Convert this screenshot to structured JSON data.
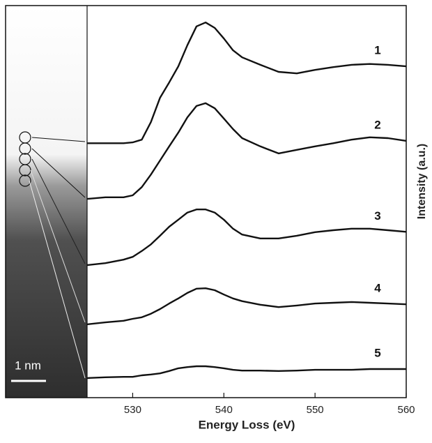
{
  "chart_data": {
    "type": "line",
    "xlabel": "Energy Loss (eV)",
    "ylabel": "Intensity (a.u.)",
    "x": [
      525,
      527,
      529,
      530,
      531,
      532,
      533,
      534,
      535,
      536,
      537,
      538,
      539,
      540,
      541,
      542,
      544,
      546,
      548,
      550,
      552,
      554,
      556,
      558,
      560
    ],
    "xlim": [
      525,
      560
    ],
    "xticks": [
      530,
      540,
      550,
      560
    ],
    "ylim": [
      0,
      100
    ],
    "series": [
      {
        "name": "1",
        "color": "#111111",
        "values": [
          64.9,
          64.9,
          64.9,
          65.1,
          65.8,
          70.3,
          76.5,
          80.4,
          84.5,
          89.9,
          94.7,
          95.7,
          94.3,
          91.6,
          88.6,
          86.8,
          84.9,
          83.1,
          82.7,
          83.6,
          84.3,
          84.9,
          85.1,
          84.9,
          84.5
        ]
      },
      {
        "name": "2",
        "color": "#111111",
        "values": [
          50.7,
          51.1,
          51.1,
          51.6,
          53.7,
          56.9,
          60.5,
          64.1,
          67.6,
          71.5,
          74.4,
          75.1,
          73.8,
          71.2,
          68.5,
          66.2,
          64.1,
          62.3,
          63.2,
          64.1,
          64.9,
          65.8,
          66.4,
          66.2,
          65.5
        ]
      },
      {
        "name": "3",
        "color": "#111111",
        "values": [
          33.8,
          34.3,
          35.2,
          35.9,
          37.4,
          39.1,
          41.3,
          43.6,
          45.4,
          47.2,
          48.0,
          48.0,
          47.2,
          45.4,
          43.1,
          41.6,
          40.6,
          40.6,
          41.3,
          42.2,
          42.7,
          43.1,
          43.1,
          42.7,
          42.3
        ]
      },
      {
        "name": "4",
        "color": "#111111",
        "values": [
          18.7,
          19.2,
          19.6,
          20.1,
          20.5,
          21.4,
          22.6,
          24.0,
          25.3,
          26.7,
          27.8,
          27.9,
          27.4,
          26.3,
          25.3,
          24.6,
          23.7,
          23.1,
          23.5,
          24.0,
          24.2,
          24.4,
          24.2,
          24.0,
          23.8
        ]
      },
      {
        "name": "5",
        "color": "#111111",
        "values": [
          5.0,
          5.2,
          5.3,
          5.3,
          5.7,
          5.9,
          6.2,
          6.8,
          7.5,
          7.8,
          8.0,
          8.0,
          7.8,
          7.5,
          7.1,
          6.9,
          6.9,
          6.8,
          6.9,
          7.1,
          7.1,
          7.1,
          7.3,
          7.3,
          7.3
        ]
      }
    ]
  },
  "image": {
    "scale_label": "1 nm"
  }
}
